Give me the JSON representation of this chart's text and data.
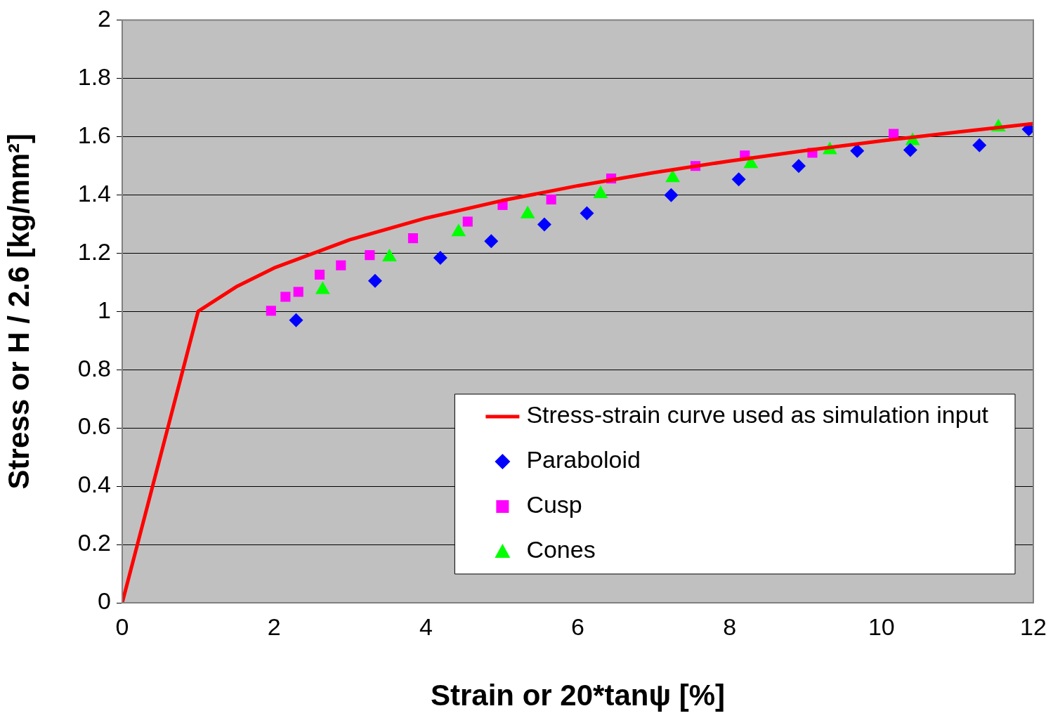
{
  "chart_data": {
    "type": "scatter",
    "xlabel": "Strain or 20*tanψ [%]",
    "ylabel": "Stress or H / 2.6 [kg/mm²]",
    "xlim": [
      0,
      12
    ],
    "xticks": [
      0,
      2,
      4,
      6,
      8,
      10,
      12
    ],
    "ylim": [
      0,
      2
    ],
    "yticks": [
      0,
      0.2,
      0.4,
      0.6,
      0.8,
      1,
      1.2,
      1.4,
      1.6,
      1.8,
      2
    ],
    "grid": "y",
    "legend": "bottom right",
    "series": [
      {
        "name": "Stress-strain curve used as simulation input",
        "type": "line",
        "color": "#ff0000",
        "marker": "none",
        "line_style": "solid",
        "x": [
          0,
          1,
          1.5,
          2,
          3,
          4,
          5,
          6,
          7,
          8,
          9,
          10,
          11,
          12
        ],
        "values": [
          0,
          1,
          1.084,
          1.149,
          1.246,
          1.32,
          1.38,
          1.431,
          1.476,
          1.516,
          1.552,
          1.585,
          1.615,
          1.644
        ]
      },
      {
        "name": "Paraboloid",
        "type": "scatter",
        "color": "#0000ff",
        "marker": "diamond",
        "x": [
          2.29,
          3.33,
          4.19,
          4.86,
          5.56,
          6.12,
          7.23,
          8.12,
          8.91,
          9.68,
          10.38,
          11.29,
          11.94
        ],
        "values": [
          0.97,
          1.105,
          1.184,
          1.241,
          1.298,
          1.337,
          1.399,
          1.453,
          1.499,
          1.551,
          1.554,
          1.57,
          1.625
        ]
      },
      {
        "name": "Cusp",
        "type": "scatter",
        "color": "#ff00ff",
        "marker": "square",
        "x": [
          1.96,
          2.15,
          2.32,
          2.6,
          2.88,
          3.26,
          3.83,
          4.55,
          5.01,
          5.65,
          6.44,
          7.55,
          8.2,
          9.09,
          10.16
        ],
        "values": [
          1.002,
          1.05,
          1.067,
          1.126,
          1.158,
          1.193,
          1.251,
          1.308,
          1.365,
          1.384,
          1.456,
          1.499,
          1.535,
          1.544,
          1.609
        ]
      },
      {
        "name": "Cones",
        "type": "scatter",
        "color": "#00ff00",
        "marker": "triangle",
        "x": [
          2.64,
          3.52,
          4.43,
          5.34,
          6.3,
          7.25,
          8.28,
          9.32,
          10.41,
          11.54
        ],
        "values": [
          1.074,
          1.186,
          1.272,
          1.334,
          1.403,
          1.458,
          1.506,
          1.554,
          1.585,
          1.632
        ]
      }
    ]
  }
}
